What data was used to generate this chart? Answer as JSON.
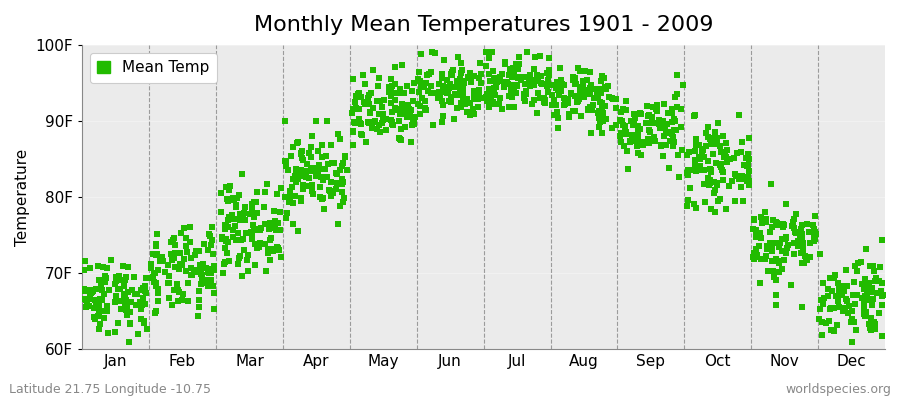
{
  "title": "Monthly Mean Temperatures 1901 - 2009",
  "ylabel": "Temperature",
  "ylim": [
    60,
    100
  ],
  "ytick_labels": [
    "60F",
    "70F",
    "80F",
    "90F",
    "100F"
  ],
  "ytick_values": [
    60,
    70,
    80,
    90,
    100
  ],
  "months": [
    "Jan",
    "Feb",
    "Mar",
    "Apr",
    "May",
    "Jun",
    "Jul",
    "Aug",
    "Sep",
    "Oct",
    "Nov",
    "Dec"
  ],
  "monthly_mean": [
    67,
    70,
    76,
    83,
    91,
    94,
    95,
    93,
    89,
    84,
    74,
    67
  ],
  "monthly_std": [
    2.5,
    2.8,
    2.8,
    2.8,
    2.5,
    2.0,
    2.0,
    2.0,
    2.2,
    2.5,
    2.8,
    2.8
  ],
  "monthly_min": [
    61,
    62,
    69,
    74,
    84,
    89,
    88,
    88,
    82,
    77,
    65,
    61
  ],
  "monthly_max": [
    74,
    76,
    83,
    90,
    98,
    99,
    99,
    97,
    96,
    93,
    83,
    76
  ],
  "n_years": 109,
  "marker_color": "#22BB00",
  "marker_size": 4,
  "background_color": "#EBEBEB",
  "alt_band_color": "#E0E0E0",
  "grid_color": "#666666",
  "title_fontsize": 16,
  "label_fontsize": 11,
  "tick_fontsize": 11,
  "bottom_left_text": "Latitude 21.75 Longitude -10.75",
  "bottom_right_text": "worldspecies.org",
  "legend_label": "Mean Temp"
}
